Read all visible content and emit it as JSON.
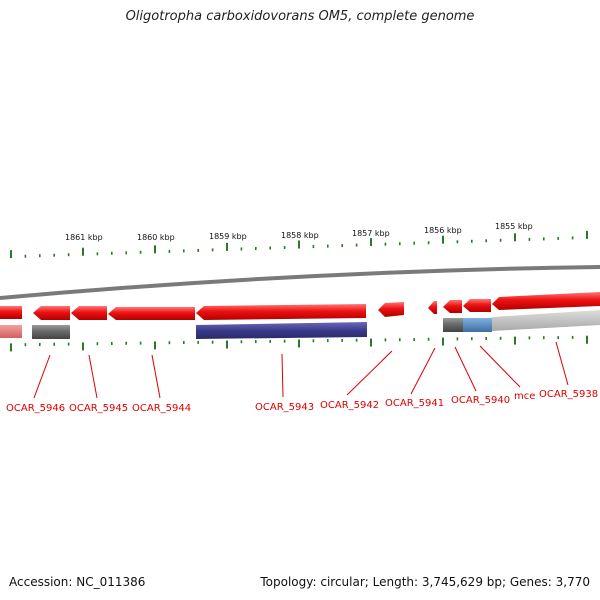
{
  "title": "Oligotropha carboxidovorans OM5, complete genome",
  "footer": {
    "accession": "Accession: NC_011386",
    "summary": "Topology: circular; Length: 3,745,629 bp; Genes: 3,770"
  },
  "colors": {
    "gene_red": "#ee1111",
    "gene_blue": "#3a3a8c",
    "gene_grey": "#666666",
    "gene_lightblue": "#4a7fb5",
    "gene_light": "#bbbbbb",
    "tick": "#2a7a2a",
    "label": "#dd0000",
    "backbone": "#888888"
  },
  "scale_labels": [
    "1861 kbp",
    "1860 kbp",
    "1859 kbp",
    "1858 kbp",
    "1857 kbp",
    "1856 kbp",
    "1855 kbp"
  ],
  "gene_labels": [
    "OCAR_5946",
    "OCAR_5945",
    "OCAR_5944",
    "OCAR_5943",
    "OCAR_5942",
    "OCAR_5941",
    "OCAR_5940",
    "mce",
    "OCAR_5938"
  ]
}
